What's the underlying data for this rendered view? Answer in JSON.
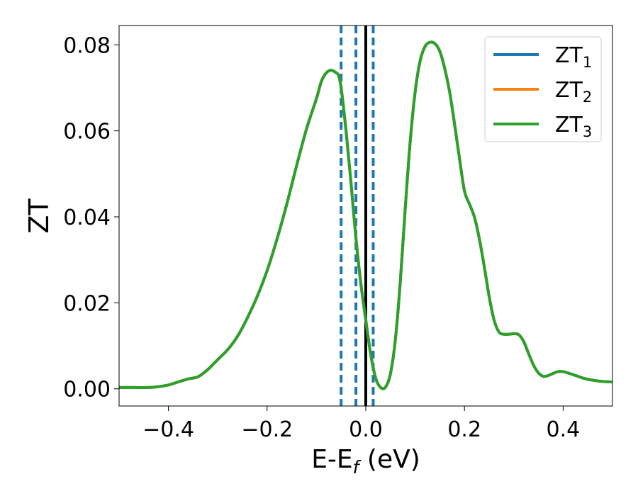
{
  "chart_data": {
    "type": "line",
    "xlabel": "E-E",
    "xlabel_sub": "f",
    "xlabel_unit": " (eV)",
    "ylabel": "ZT",
    "xlim": [
      -0.5,
      0.5
    ],
    "ylim": [
      -0.004,
      0.0845
    ],
    "xticks": [
      -0.4,
      -0.2,
      0.0,
      0.2,
      0.4
    ],
    "xtick_labels": [
      "−0.4",
      "−0.2",
      "0.0",
      "0.2",
      "0.4"
    ],
    "yticks": [
      0.0,
      0.02,
      0.04,
      0.06,
      0.08
    ],
    "ytick_labels": [
      "0.00",
      "0.02",
      "0.04",
      "0.06",
      "0.08"
    ],
    "legend_position": "top-right",
    "series": [
      {
        "name": "ZT",
        "name_sub": "1",
        "color": "#1f77b4",
        "visible": false
      },
      {
        "name": "ZT",
        "name_sub": "2",
        "color": "#ff7f0e",
        "visible": false
      },
      {
        "name": "ZT",
        "name_sub": "3",
        "color": "#2ca02c",
        "visible": true
      }
    ],
    "x": [
      -0.5,
      -0.47,
      -0.44,
      -0.42,
      -0.4,
      -0.38,
      -0.36,
      -0.34,
      -0.32,
      -0.3,
      -0.28,
      -0.26,
      -0.24,
      -0.22,
      -0.2,
      -0.18,
      -0.16,
      -0.14,
      -0.12,
      -0.1,
      -0.09,
      -0.08,
      -0.07,
      -0.06,
      -0.055,
      -0.05,
      -0.04,
      -0.03,
      -0.02,
      -0.01,
      0.0,
      0.01,
      0.02,
      0.03,
      0.04,
      0.05,
      0.06,
      0.07,
      0.08,
      0.09,
      0.1,
      0.11,
      0.12,
      0.13,
      0.14,
      0.15,
      0.16,
      0.17,
      0.18,
      0.19,
      0.2,
      0.21,
      0.22,
      0.23,
      0.24,
      0.25,
      0.26,
      0.27,
      0.28,
      0.29,
      0.3,
      0.31,
      0.32,
      0.33,
      0.34,
      0.35,
      0.36,
      0.37,
      0.38,
      0.39,
      0.4,
      0.42,
      0.44,
      0.46,
      0.48,
      0.5
    ],
    "y": [
      0.0003,
      0.0003,
      0.0003,
      0.0005,
      0.0009,
      0.0016,
      0.0023,
      0.0028,
      0.0045,
      0.0068,
      0.0091,
      0.0122,
      0.0165,
      0.0215,
      0.0275,
      0.0348,
      0.043,
      0.052,
      0.0605,
      0.0675,
      0.0715,
      0.0735,
      0.0741,
      0.0735,
      0.0728,
      0.07,
      0.06,
      0.048,
      0.035,
      0.0245,
      0.016,
      0.008,
      0.0025,
      0.0003,
      0.0004,
      0.0035,
      0.0115,
      0.025,
      0.042,
      0.0575,
      0.069,
      0.0762,
      0.0796,
      0.0806,
      0.0803,
      0.0785,
      0.0745,
      0.069,
      0.0615,
      0.0535,
      0.046,
      0.043,
      0.04,
      0.035,
      0.0285,
      0.0215,
      0.016,
      0.0132,
      0.0127,
      0.0127,
      0.0128,
      0.0126,
      0.011,
      0.0082,
      0.0055,
      0.0037,
      0.0029,
      0.0031,
      0.0036,
      0.004,
      0.004,
      0.0033,
      0.0025,
      0.002,
      0.0017,
      0.0016
    ],
    "vlines": [
      {
        "x": -0.05,
        "style": "dashed",
        "color": "#1f77b4"
      },
      {
        "x": -0.02,
        "style": "dashed",
        "color": "#1f77b4"
      },
      {
        "x": 0.0,
        "style": "solid",
        "color": "#000000"
      },
      {
        "x": 0.015,
        "style": "dashed",
        "color": "#1f77b4"
      }
    ]
  }
}
